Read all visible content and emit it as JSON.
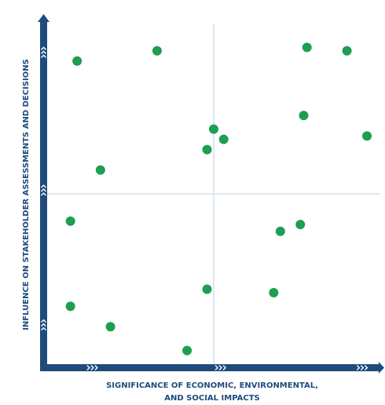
{
  "chart_data": {
    "type": "scatter",
    "title": "",
    "xlabel_lines": [
      "SIGNIFICANCE OF ECONOMIC, ENVIRONMENTAL,",
      "AND SOCIAL IMPACTS"
    ],
    "ylabel": "INFLUENCE ON STAKEHOLDER ASSESSMENTS AND DECISIONS",
    "xlim": [
      0,
      100
    ],
    "ylim": [
      0,
      100
    ],
    "quadrants": 4,
    "grid": "center lines only",
    "legend": "none",
    "colors": {
      "point": "#1e9e52",
      "axis": "#1f4b7c",
      "chevron": "#ffffff",
      "grid": "#cfe0ef",
      "label": "#1f4b7c"
    },
    "points": [
      {
        "x": 9,
        "y": 89
      },
      {
        "x": 33,
        "y": 92
      },
      {
        "x": 78,
        "y": 93
      },
      {
        "x": 90,
        "y": 92
      },
      {
        "x": 77,
        "y": 73
      },
      {
        "x": 50,
        "y": 69
      },
      {
        "x": 53,
        "y": 66
      },
      {
        "x": 48,
        "y": 63
      },
      {
        "x": 96,
        "y": 67
      },
      {
        "x": 16,
        "y": 57
      },
      {
        "x": 7,
        "y": 42
      },
      {
        "x": 70,
        "y": 39
      },
      {
        "x": 76,
        "y": 41
      },
      {
        "x": 48,
        "y": 22
      },
      {
        "x": 68,
        "y": 21
      },
      {
        "x": 7,
        "y": 17
      },
      {
        "x": 19,
        "y": 11
      },
      {
        "x": 42,
        "y": 4
      }
    ]
  }
}
